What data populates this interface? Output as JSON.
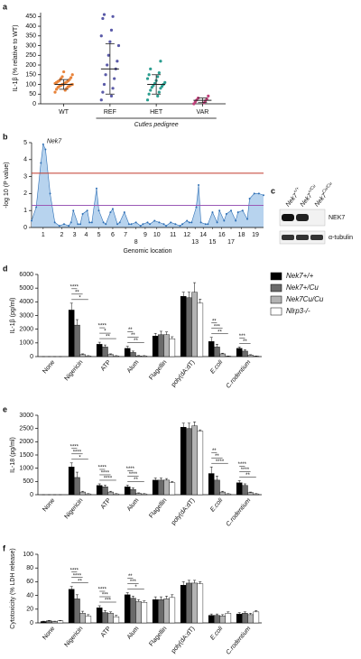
{
  "chart_data": [
    {
      "type": "strip",
      "panel_label": "a",
      "ylabel": "IL-1β (% relative to WT)",
      "group_label": "Cutles pedigree",
      "categories": [
        "WT",
        "REF",
        "HET",
        "VAR"
      ],
      "series": [
        {
          "name": "WT",
          "color": "#e8833a",
          "values": [
            60,
            70,
            75,
            80,
            85,
            88,
            90,
            92,
            95,
            98,
            100,
            100,
            102,
            105,
            108,
            110,
            112,
            115,
            118,
            120,
            125,
            130,
            135,
            140,
            150,
            165
          ]
        },
        {
          "name": "REF",
          "color": "#5a5aa8",
          "values": [
            20,
            40,
            60,
            80,
            100,
            130,
            150,
            180,
            200,
            220,
            250,
            300,
            320,
            350,
            380,
            440,
            450,
            460
          ]
        },
        {
          "name": "HET",
          "color": "#2a9d8f",
          "values": [
            20,
            40,
            50,
            60,
            70,
            80,
            85,
            90,
            95,
            100,
            105,
            110,
            120,
            130,
            140,
            150,
            160,
            180,
            220
          ]
        },
        {
          "name": "VAR",
          "color": "#c0407a",
          "values": [
            0,
            5,
            10,
            15,
            20,
            25,
            30,
            40
          ]
        }
      ],
      "means": [
        100,
        180,
        100,
        18
      ],
      "sd": [
        25,
        130,
        50,
        12
      ],
      "ylim": [
        0,
        470
      ],
      "yticks": [
        0,
        50,
        100,
        150,
        200,
        250,
        300,
        350,
        400,
        450
      ]
    },
    {
      "type": "area",
      "panel_label": "b",
      "ylabel": "-log 10 (P value)",
      "xlabel": "Genomic location",
      "annotation": "Nek7",
      "color": "#2e6fb5",
      "fill": "#b7d3ee",
      "x": [
        0,
        2,
        4,
        5,
        6,
        8,
        10,
        12,
        14,
        16,
        17,
        18,
        20,
        21,
        22,
        24,
        25,
        26,
        28,
        29,
        31,
        32,
        34,
        35,
        37,
        38,
        40,
        42,
        43,
        45,
        47,
        48,
        50,
        51,
        53,
        55,
        57,
        58,
        60,
        62,
        64,
        65,
        67,
        68,
        69,
        71,
        72,
        73,
        75,
        76,
        78,
        80,
        81,
        83,
        84,
        86,
        88,
        89,
        91,
        93,
        94,
        96,
        98,
        100
      ],
      "y": [
        0.4,
        1.2,
        3.8,
        4.9,
        4.6,
        2.0,
        0.3,
        0.1,
        0.2,
        0.1,
        0.3,
        1.0,
        0.2,
        0.2,
        0.8,
        1.0,
        0.3,
        0.3,
        2.3,
        1.0,
        0.3,
        0.2,
        0.9,
        1.1,
        0.2,
        0.3,
        0.9,
        0.2,
        0.2,
        0.3,
        0.1,
        0.2,
        0.3,
        0.2,
        0.4,
        0.3,
        0.2,
        0.1,
        0.3,
        0.2,
        0.1,
        0.2,
        0.4,
        0.3,
        0.3,
        1.2,
        2.5,
        0.3,
        0.2,
        0.2,
        0.9,
        0.3,
        1.0,
        0.4,
        0.8,
        1.0,
        0.4,
        0.9,
        1.0,
        0.5,
        1.7,
        2.0,
        2.0,
        1.9
      ],
      "thresholds": [
        {
          "value": 3.2,
          "color": "#c0392b"
        },
        {
          "value": 1.3,
          "color": "#9b59b6"
        }
      ],
      "xlim": [
        0,
        100
      ],
      "xticks": [
        {
          "value": 5,
          "label": "1"
        },
        {
          "value": 13,
          "label": "2"
        },
        {
          "value": 18.5,
          "label": "3"
        },
        {
          "value": 23.5,
          "label": "4"
        },
        {
          "value": 29,
          "label": "5"
        },
        {
          "value": 35,
          "label": "6"
        },
        {
          "value": 40.5,
          "label": "7"
        },
        {
          "value": 45,
          "label": "8"
        },
        {
          "value": 49,
          "label": "9"
        },
        {
          "value": 54,
          "label": "10"
        },
        {
          "value": 61,
          "label": "11"
        },
        {
          "value": 67,
          "label": "12"
        },
        {
          "value": 70.5,
          "label": "13"
        },
        {
          "value": 74,
          "label": "14"
        },
        {
          "value": 78,
          "label": "15"
        },
        {
          "value": 82,
          "label": "16"
        },
        {
          "value": 86,
          "label": "17"
        },
        {
          "value": 90.5,
          "label": "18"
        },
        {
          "value": 96.5,
          "label": "19"
        }
      ],
      "ylim": [
        0,
        5
      ],
      "yticks": [
        0,
        1,
        2,
        3,
        4,
        5
      ]
    },
    {
      "type": "grouped_bar",
      "panel_label": "d",
      "ylabel": "IL-1β (pg/ml)",
      "legend": true,
      "categories": [
        "None",
        "Nigericin",
        "ATP",
        "Alum",
        "Flagellin",
        "poly(dA:dT)",
        "E.coli",
        "C.rodentium"
      ],
      "series": [
        {
          "name": "Nek7+/+",
          "color": "#000000",
          "values": [
            0,
            3400,
            900,
            600,
            1500,
            4400,
            1100,
            600
          ],
          "errors": [
            0,
            500,
            150,
            150,
            200,
            300,
            300,
            100
          ]
        },
        {
          "name": "Nek7+/Cu",
          "color": "#6b6b6b",
          "values": [
            0,
            2300,
            700,
            300,
            1600,
            4300,
            700,
            400
          ],
          "errors": [
            0,
            400,
            150,
            100,
            250,
            400,
            200,
            100
          ]
        },
        {
          "name": "Nek7Cu/Cu",
          "color": "#b3b3b3",
          "values": [
            0,
            150,
            150,
            50,
            1600,
            4700,
            200,
            100
          ],
          "errors": [
            0,
            50,
            50,
            30,
            200,
            700,
            50,
            40
          ]
        },
        {
          "name": "Nlrp3-/-",
          "color": "#ffffff",
          "values": [
            0,
            50,
            50,
            50,
            1300,
            3900,
            30,
            30
          ],
          "errors": [
            0,
            20,
            20,
            20,
            150,
            300,
            10,
            10
          ]
        }
      ],
      "significance": [
        {
          "category": "Nigericin",
          "stars": [
            "****",
            "**",
            "*"
          ]
        },
        {
          "category": "ATP",
          "stars": [
            "****",
            "*",
            "**"
          ]
        },
        {
          "category": "Alum",
          "stars": [
            "**",
            "**",
            "**"
          ]
        },
        {
          "category": "E.coli",
          "stars": [
            "**",
            "***",
            "**"
          ]
        },
        {
          "category": "C.rodentium",
          "stars": [
            "***",
            "**"
          ]
        }
      ],
      "ylim": [
        0,
        6000
      ],
      "yticks": [
        0,
        1000,
        2000,
        3000,
        4000,
        5000,
        6000
      ]
    },
    {
      "type": "grouped_bar",
      "panel_label": "e",
      "ylabel": "IL-18 (pg/ml)",
      "legend": false,
      "categories": [
        "None",
        "Nigericin",
        "ATP",
        "Alum",
        "Flagellin",
        "poly(dA:dT)",
        "E.coli",
        "C.rodentium"
      ],
      "series": [
        {
          "name": "Nek7+/+",
          "color": "#000000",
          "values": [
            0,
            1050,
            350,
            300,
            550,
            2550,
            800,
            450
          ],
          "errors": [
            0,
            150,
            60,
            60,
            80,
            150,
            250,
            80
          ]
        },
        {
          "name": "Nek7+/Cu",
          "color": "#6b6b6b",
          "values": [
            0,
            650,
            300,
            200,
            550,
            2500,
            550,
            350
          ],
          "errors": [
            0,
            200,
            60,
            60,
            80,
            200,
            150,
            60
          ]
        },
        {
          "name": "Nek7Cu/Cu",
          "color": "#b3b3b3",
          "values": [
            0,
            100,
            100,
            50,
            550,
            2600,
            100,
            80
          ],
          "errors": [
            0,
            30,
            30,
            20,
            60,
            150,
            30,
            20
          ]
        },
        {
          "name": "Nlrp3-/-",
          "color": "#ffffff",
          "values": [
            0,
            30,
            30,
            30,
            450,
            2400,
            30,
            30
          ],
          "errors": [
            0,
            10,
            10,
            10,
            50,
            50,
            10,
            10
          ]
        }
      ],
      "significance": [
        {
          "category": "Nigericin",
          "stars": [
            "****",
            "****",
            "*"
          ]
        },
        {
          "category": "ATP",
          "stars": [
            "****",
            "****",
            "****"
          ]
        },
        {
          "category": "Alum",
          "stars": [
            "****",
            "****",
            "**"
          ]
        },
        {
          "category": "E.coli",
          "stars": [
            "**",
            "**",
            "****"
          ]
        },
        {
          "category": "C.rodentium",
          "stars": [
            "****",
            "****",
            "**"
          ]
        }
      ],
      "ylim": [
        0,
        3000
      ],
      "yticks": [
        0,
        500,
        1000,
        1500,
        2000,
        2500,
        3000
      ]
    },
    {
      "type": "grouped_bar",
      "panel_label": "f",
      "ylabel": "Cytotoxicity (% LDH release)",
      "legend": false,
      "categories": [
        "None",
        "Nigericin",
        "ATP",
        "Alum",
        "Flagellin",
        "poly(dA:dT)",
        "E.coli",
        "C.rodentium"
      ],
      "series": [
        {
          "name": "Nek7+/+",
          "color": "#000000",
          "values": [
            2,
            49,
            22,
            41,
            34,
            55,
            11,
            13
          ],
          "errors": [
            0.5,
            4,
            3,
            3,
            4,
            5,
            2,
            2
          ]
        },
        {
          "name": "Nek7+/Cu",
          "color": "#6b6b6b",
          "values": [
            3,
            35,
            15,
            36,
            34,
            58,
            11,
            14
          ],
          "errors": [
            0.5,
            6,
            3,
            3,
            4,
            4,
            2,
            2
          ]
        },
        {
          "name": "Nek7Cu/Cu",
          "color": "#b3b3b3",
          "values": [
            2,
            14,
            14,
            31,
            35,
            58,
            10,
            12
          ],
          "errors": [
            0.5,
            3,
            2,
            3,
            4,
            4,
            2,
            2
          ]
        },
        {
          "name": "Nlrp3-/-",
          "color": "#ffffff",
          "values": [
            3,
            10,
            9,
            30,
            37,
            57,
            14,
            16
          ],
          "errors": [
            0.5,
            2,
            2,
            2,
            4,
            3,
            2,
            2
          ]
        }
      ],
      "significance": [
        {
          "category": "Nigericin",
          "stars": [
            "****",
            "****",
            "**"
          ]
        },
        {
          "category": "ATP",
          "stars": [
            "****",
            "***",
            "***"
          ]
        },
        {
          "category": "Alum",
          "stars": [
            "**",
            "***",
            "*"
          ]
        }
      ],
      "ylim": [
        0,
        100
      ],
      "yticks": [
        0,
        20,
        40,
        60,
        80,
        100
      ]
    }
  ],
  "blot": {
    "panel_label": "c",
    "lanes": [
      {
        "gene": "Nek7",
        "genotype": "+/+"
      },
      {
        "gene": "Nek7",
        "genotype": "+/Cu"
      },
      {
        "gene": "Nek7",
        "genotype": "Cu/Cu"
      }
    ],
    "bands": [
      "NEK7",
      "α-tubulin"
    ]
  }
}
